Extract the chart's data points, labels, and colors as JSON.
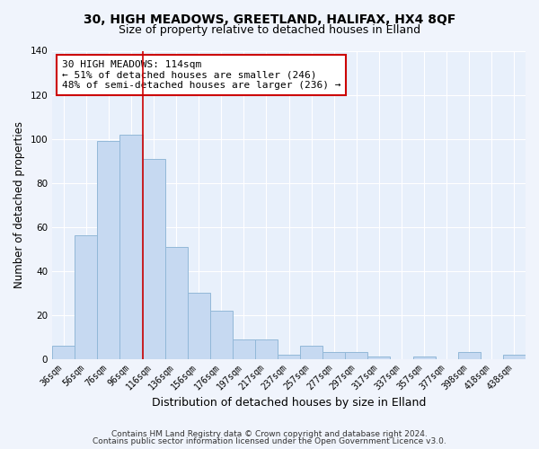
{
  "title1": "30, HIGH MEADOWS, GREETLAND, HALIFAX, HX4 8QF",
  "title2": "Size of property relative to detached houses in Elland",
  "xlabel": "Distribution of detached houses by size in Elland",
  "ylabel": "Number of detached properties",
  "bar_labels": [
    "36sqm",
    "56sqm",
    "76sqm",
    "96sqm",
    "116sqm",
    "136sqm",
    "156sqm",
    "176sqm",
    "197sqm",
    "217sqm",
    "237sqm",
    "257sqm",
    "277sqm",
    "297sqm",
    "317sqm",
    "337sqm",
    "357sqm",
    "377sqm",
    "398sqm",
    "418sqm",
    "438sqm"
  ],
  "bar_values": [
    6,
    56,
    99,
    102,
    91,
    51,
    30,
    22,
    9,
    9,
    2,
    6,
    3,
    3,
    1,
    0,
    1,
    0,
    3,
    0,
    2
  ],
  "bar_color": "#c6d9f1",
  "bar_edge_color": "#92b8d8",
  "vline_color": "#cc0000",
  "annotation_line1": "30 HIGH MEADOWS: 114sqm",
  "annotation_line2": "← 51% of detached houses are smaller (246)",
  "annotation_line3": "48% of semi-detached houses are larger (236) →",
  "annotation_box_facecolor": "#ffffff",
  "annotation_box_edgecolor": "#cc0000",
  "ylim": [
    0,
    140
  ],
  "yticks": [
    0,
    20,
    40,
    60,
    80,
    100,
    120,
    140
  ],
  "ax_background": "#e8f0fb",
  "fig_background": "#f0f4fc",
  "grid_color": "#ffffff",
  "footer1": "Contains HM Land Registry data © Crown copyright and database right 2024.",
  "footer2": "Contains public sector information licensed under the Open Government Licence v3.0.",
  "title1_fontsize": 10,
  "title2_fontsize": 9,
  "xlabel_fontsize": 9,
  "ylabel_fontsize": 8.5,
  "tick_fontsize": 7,
  "annotation_fontsize": 8,
  "footer_fontsize": 6.5
}
